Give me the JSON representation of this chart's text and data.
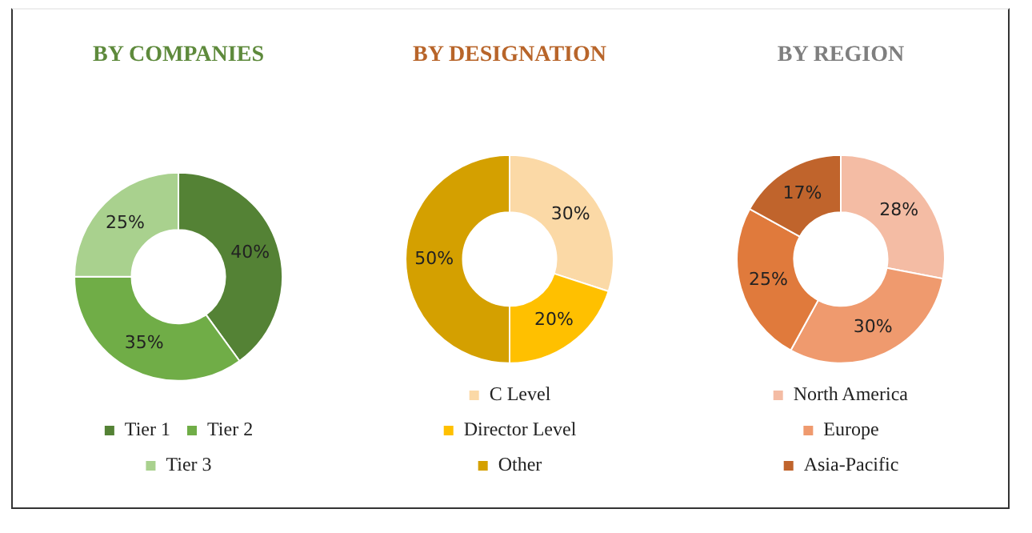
{
  "chart_data": [
    {
      "type": "donut",
      "title": "BY COMPANIES",
      "categories": [
        "Tier 1",
        "Tier 2",
        "Tier 3"
      ],
      "values": [
        40,
        35,
        25
      ],
      "value_labels": [
        "40%",
        "35%",
        "25%"
      ],
      "colors": [
        "#548235",
        "#70ad47",
        "#a9d18e"
      ],
      "legend": "bottom"
    },
    {
      "type": "donut",
      "title": "BY DESIGNATION",
      "categories": [
        "C Level",
        "Director Level",
        "Other"
      ],
      "values": [
        30,
        20,
        50
      ],
      "value_labels": [
        "30%",
        "20%",
        "50%"
      ],
      "colors": [
        "#fbd9a6",
        "#ffc000",
        "#d4a000"
      ],
      "legend": "bottom"
    },
    {
      "type": "donut",
      "title": "BY REGION",
      "categories": [
        "North America",
        "Europe",
        null,
        "Asia-Pacific"
      ],
      "values": [
        28,
        30,
        25,
        17
      ],
      "value_labels": [
        "28%",
        "30%",
        "25%",
        "17%"
      ],
      "colors": [
        "#f4bca4",
        "#ef9a6e",
        "#e07a3c",
        "#c0642c"
      ],
      "legend": "bottom"
    }
  ]
}
